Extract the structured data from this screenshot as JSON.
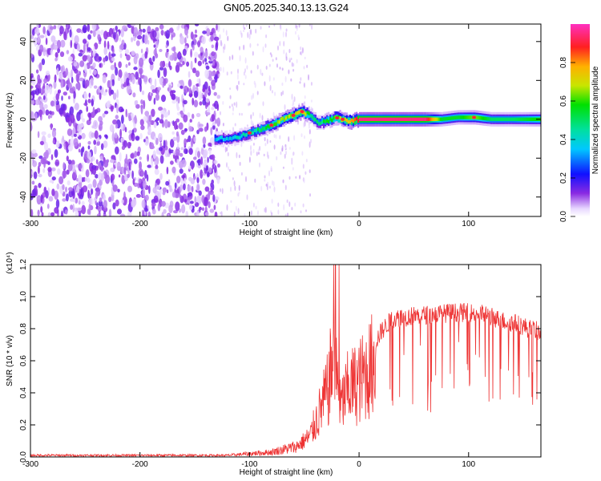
{
  "title": "GN05.2025.340.13.13.G24",
  "chart_data": [
    {
      "type": "heatmap",
      "name": "spectrogram",
      "xlabel": "Height of straight line (km)",
      "ylabel": "Frequency (Hz)",
      "xlim": [
        -300,
        166
      ],
      "ylim": [
        -50,
        49
      ],
      "xticks": [
        -300,
        -200,
        -100,
        0,
        100
      ],
      "yticks": [
        -40,
        -20,
        0,
        20,
        40
      ],
      "ytick_labels": [
        "-40",
        "-20",
        "0",
        "20",
        "40"
      ],
      "xtick_labels": [
        "-300",
        "-200",
        "-100",
        "0",
        "100"
      ],
      "colorbar": {
        "label": "Normalized spectral amplitude",
        "range": [
          0,
          1
        ],
        "ticks": [
          0.0,
          0.2,
          0.4,
          0.6,
          0.8
        ],
        "tick_labels": [
          "0.0",
          "0.2",
          "0.4",
          "0.6",
          "0.8"
        ]
      },
      "ridge": {
        "x": [
          -132,
          -120,
          -110,
          -100,
          -90,
          -80,
          -70,
          -60,
          -52,
          -45,
          -38,
          -30,
          -22,
          -15,
          -8,
          0,
          20,
          40,
          60,
          75,
          90,
          105,
          120,
          140,
          166
        ],
        "freq": [
          -10,
          -10,
          -9,
          -7,
          -5,
          -3,
          0,
          2,
          4,
          2,
          -2,
          -1,
          1,
          0,
          -1,
          0,
          0,
          0,
          0,
          0,
          1,
          1,
          0,
          0,
          0
        ],
        "amplitude": [
          0.35,
          0.35,
          0.4,
          0.45,
          0.5,
          0.6,
          0.65,
          0.7,
          0.75,
          0.5,
          0.45,
          0.55,
          0.6,
          0.7,
          0.75,
          0.95,
          0.95,
          0.95,
          0.95,
          0.55,
          0.55,
          0.65,
          0.5,
          0.5,
          0.6
        ]
      },
      "noise_region_x": [
        -300,
        -128
      ]
    },
    {
      "type": "line",
      "name": "snr",
      "xlabel": "Height of straight line (km)",
      "ylabel": "SNR (10 * v/v)",
      "scale_note": "(x10⁴)",
      "xlim": [
        -300,
        166
      ],
      "ylim": [
        0,
        1.2
      ],
      "xticks": [
        -300,
        -200,
        -100,
        0,
        100
      ],
      "xtick_labels": [
        "-300",
        "-200",
        "-100",
        "0",
        "100"
      ],
      "yticks": [
        0.0,
        0.2,
        0.4,
        0.6,
        0.8,
        1.0,
        1.2
      ],
      "ytick_labels": [
        "0.0",
        "0.2",
        "0.4",
        "0.6",
        "0.8",
        "1.0",
        "1.2"
      ],
      "color": "#ee3333",
      "envelope": {
        "x": [
          -300,
          -200,
          -120,
          -100,
          -80,
          -60,
          -45,
          -35,
          -28,
          -22,
          -18,
          -10,
          0,
          10,
          20,
          30,
          50,
          70,
          85,
          100,
          115,
          130,
          145,
          155,
          166
        ],
        "y": [
          0.01,
          0.01,
          0.01,
          0.02,
          0.03,
          0.06,
          0.15,
          0.35,
          0.5,
          0.85,
          0.35,
          0.5,
          0.55,
          0.65,
          0.78,
          0.86,
          0.88,
          0.89,
          0.9,
          0.9,
          0.89,
          0.85,
          0.83,
          0.8,
          0.78
        ]
      }
    }
  ]
}
